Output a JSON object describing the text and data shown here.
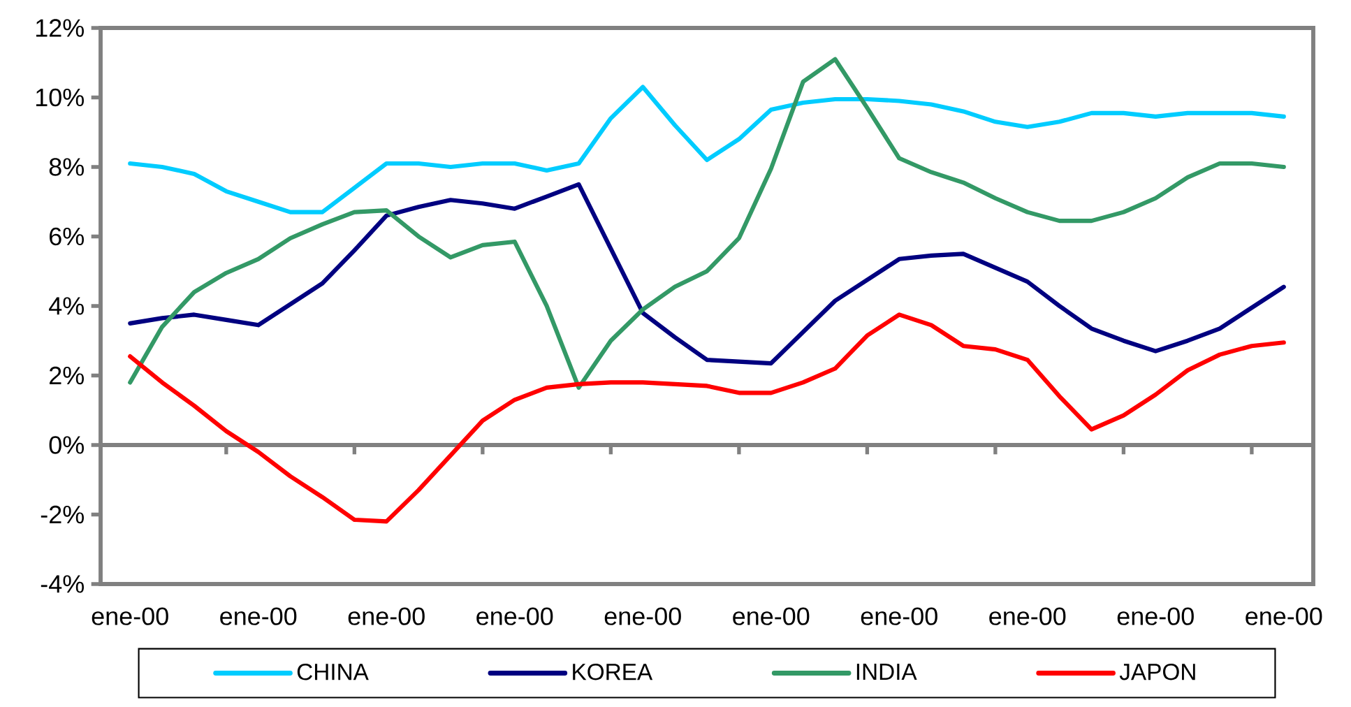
{
  "chart_data": {
    "type": "line",
    "categories": [
      "ene-00",
      null,
      null,
      null,
      "ene-00",
      null,
      null,
      null,
      "ene-00",
      null,
      null,
      null,
      "ene-00",
      null,
      null,
      null,
      "ene-00",
      null,
      null,
      null,
      "ene-00",
      null,
      null,
      null,
      "ene-00",
      null,
      null,
      null,
      "ene-00",
      null,
      null,
      null,
      "ene-00",
      null,
      null,
      null,
      "ene-00"
    ],
    "series": [
      {
        "name": "CHINA",
        "color": "#00ccff",
        "values": [
          8.1,
          8.0,
          7.8,
          7.3,
          7.0,
          6.7,
          6.7,
          7.4,
          8.1,
          8.1,
          8.0,
          8.1,
          8.1,
          7.9,
          8.1,
          9.4,
          10.3,
          9.2,
          8.2,
          8.8,
          9.65,
          9.85,
          9.95,
          9.95,
          9.9,
          9.8,
          9.6,
          9.3,
          9.15,
          9.3,
          9.55,
          9.55,
          9.45,
          9.55,
          9.55,
          9.55,
          9.45
        ]
      },
      {
        "name": "KOREA",
        "color": "#000080",
        "values": [
          3.5,
          3.65,
          3.75,
          3.6,
          3.45,
          4.05,
          4.65,
          5.6,
          6.6,
          6.85,
          7.05,
          6.95,
          6.8,
          7.15,
          7.5,
          5.65,
          3.8,
          3.1,
          2.45,
          2.4,
          2.35,
          3.25,
          4.15,
          4.75,
          5.35,
          5.45,
          5.5,
          5.1,
          4.7,
          4.0,
          3.35,
          3.0,
          2.7,
          3.0,
          3.35,
          3.95,
          4.55
        ]
      },
      {
        "name": "INDIA",
        "color": "#339966",
        "values": [
          1.8,
          3.4,
          4.4,
          4.95,
          5.35,
          5.95,
          6.35,
          6.7,
          6.75,
          6.0,
          5.4,
          5.75,
          5.85,
          4.0,
          1.65,
          3.0,
          3.9,
          4.55,
          5.0,
          5.95,
          7.95,
          10.45,
          11.1,
          9.7,
          8.25,
          7.85,
          7.55,
          7.1,
          6.7,
          6.45,
          6.45,
          6.7,
          7.1,
          7.7,
          8.1,
          8.1,
          8.0
        ]
      },
      {
        "name": "JAPON",
        "color": "#ff0000",
        "values": [
          2.55,
          1.8,
          1.13,
          0.4,
          -0.2,
          -0.9,
          -1.5,
          -2.15,
          -2.2,
          -1.3,
          -0.3,
          0.7,
          1.3,
          1.65,
          1.75,
          1.8,
          1.8,
          1.75,
          1.7,
          1.5,
          1.5,
          1.8,
          2.2,
          3.15,
          3.75,
          3.45,
          2.85,
          2.75,
          2.45,
          1.4,
          0.45,
          0.85,
          1.45,
          2.15,
          2.6,
          2.85,
          2.95
        ]
      }
    ],
    "ylim": [
      -4,
      12
    ],
    "yticks": [
      {
        "value": -4,
        "label": "-4%"
      },
      {
        "value": -2,
        "label": "-2%"
      },
      {
        "value": 0,
        "label": "0%"
      },
      {
        "value": 2,
        "label": "2%"
      },
      {
        "value": 4,
        "label": "4%"
      },
      {
        "value": 6,
        "label": "6%"
      },
      {
        "value": 8,
        "label": "8%"
      },
      {
        "value": 10,
        "label": "10%"
      },
      {
        "value": 12,
        "label": "12%"
      }
    ],
    "legend": "bottom",
    "marker": "none",
    "line_style": "solid"
  }
}
